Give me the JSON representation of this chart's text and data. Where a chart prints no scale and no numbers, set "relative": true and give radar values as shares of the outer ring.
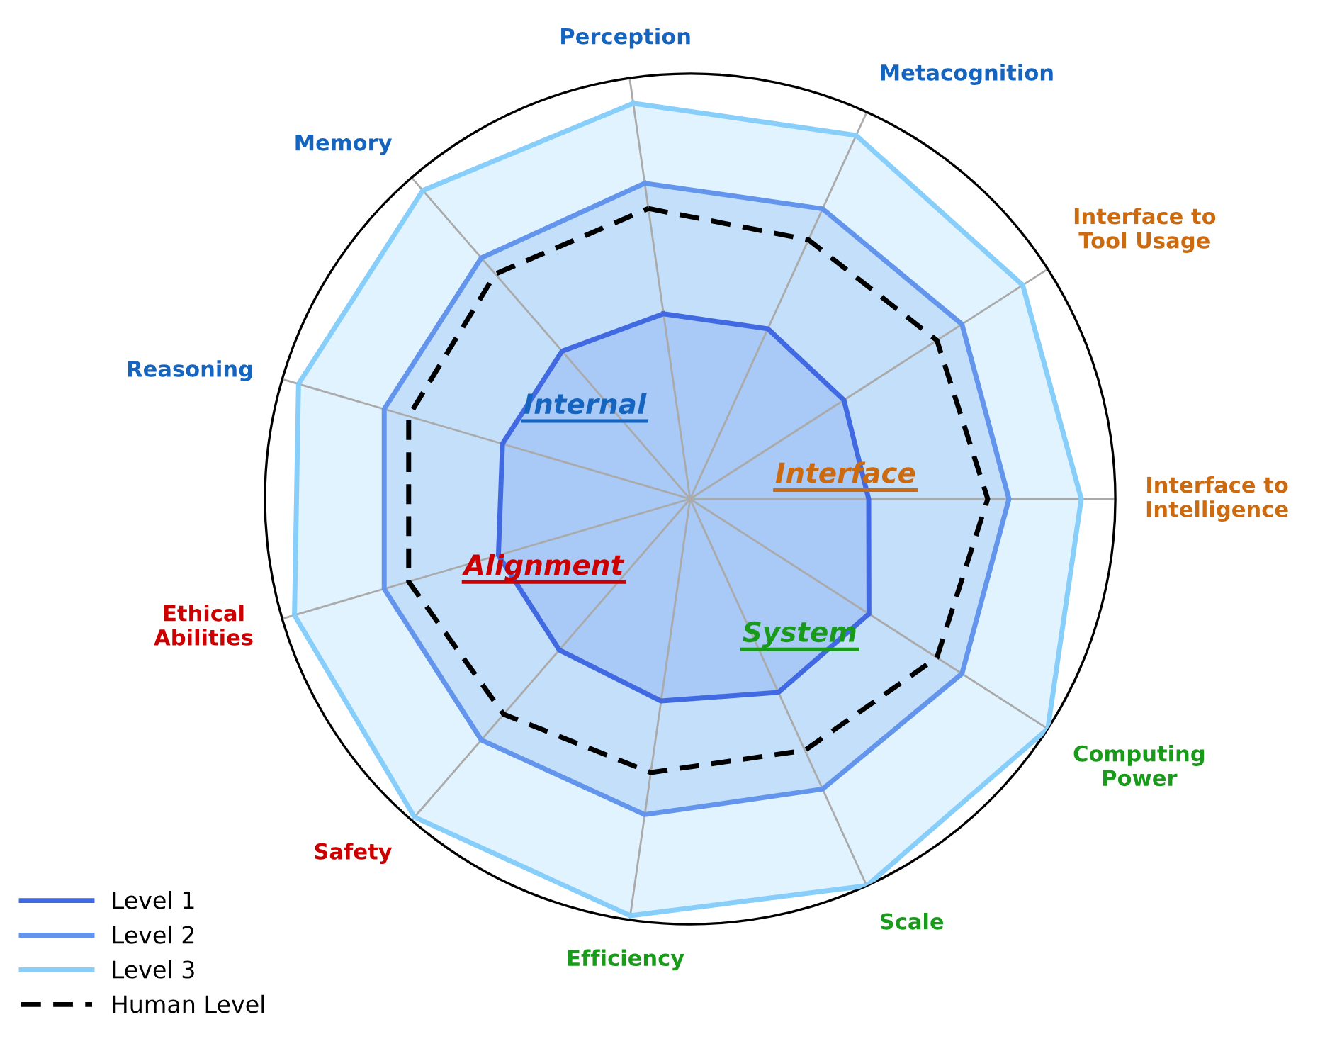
{
  "chart_data": {
    "type": "radar",
    "relative": true,
    "grid": "x",
    "legend": "bottom left",
    "categories": [
      "Perception",
      "Metacognition",
      "Interface to\nTool Usage",
      "Interface to\nIntelligence",
      "Computing\nPower",
      "Scale",
      "Efficiency",
      "Safety",
      "Ethical\nAbilities",
      "Reasoning",
      "Memory"
    ],
    "series": [
      {
        "name": "Level 1",
        "color": "#4169e1",
        "values": [
          0.44,
          0.44,
          0.43,
          0.42,
          0.5,
          0.5,
          0.48,
          0.47,
          0.47,
          0.46,
          0.46
        ]
      },
      {
        "name": "Level 2",
        "color": "#6495ed",
        "values": [
          0.75,
          0.75,
          0.76,
          0.75,
          0.76,
          0.75,
          0.75,
          0.75,
          0.75,
          0.75,
          0.75
        ]
      },
      {
        "name": "Level 3",
        "color": "#87cefa",
        "values": [
          0.94,
          0.94,
          0.93,
          0.92,
          1.0,
          1.0,
          0.99,
          0.99,
          0.97,
          0.96,
          0.96
        ]
      },
      {
        "name": "Human Level",
        "color": "#000000",
        "line_style": "dashed",
        "values": [
          0.69,
          0.67,
          0.69,
          0.7,
          0.69,
          0.65,
          0.65,
          0.67,
          0.69,
          0.69,
          0.7
        ]
      }
    ],
    "annotations": [
      "Internal",
      "Interface",
      "System",
      "Alignment"
    ]
  }
}
